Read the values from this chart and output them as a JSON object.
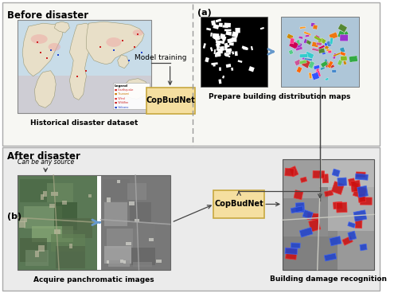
{
  "bg_top": "#f7f7f3",
  "bg_bottom": "#ebebeb",
  "box_fill": "#f5dfa0",
  "box_edge": "#c8a840",
  "title_before": "Before disaster",
  "title_after": "After disaster",
  "label_a": "(a)",
  "label_b": "(b)",
  "copbudnet_text": "CopBudNet",
  "model_training_text": "Model training",
  "hist_dataset_text": "Historical disaster dataset",
  "prepare_map_text": "Prepare building distribution maps",
  "acquire_pan_text": "Acquire panchromatic images",
  "damage_text": "Building damage recognition",
  "can_be_any_text": "Can be any source",
  "arrow_color": "#444444",
  "dashed_line_color": "#999999",
  "blue_arrow_color": "#6699cc",
  "panel_edge": "#aaaaaa"
}
